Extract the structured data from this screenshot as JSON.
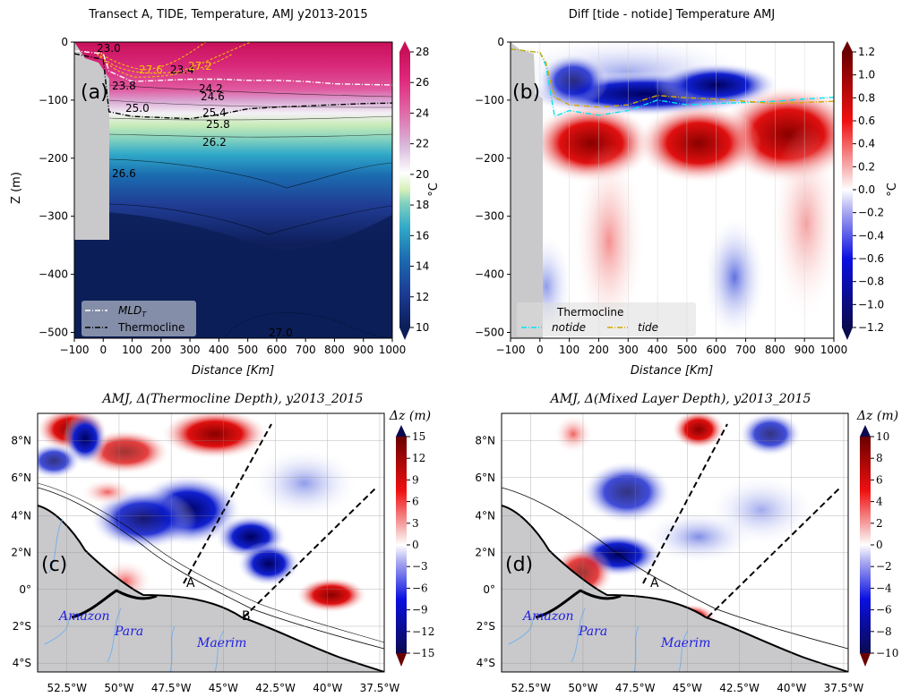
{
  "chart_data": [
    {
      "id": "a",
      "type": "heatmap",
      "title": "Transect A, TIDE, Temperature, AMJ y2013-2015",
      "panel_label": "(a)",
      "xlabel": "Distance [Km]",
      "ylabel": "Z (m)",
      "xlim": [
        -100,
        1000
      ],
      "ylim": [
        -510,
        0
      ],
      "xticks": [
        "−100",
        "0",
        "100",
        "200",
        "300",
        "400",
        "500",
        "600",
        "700",
        "800",
        "900",
        "1000"
      ],
      "xtick_values": [
        -100,
        0,
        100,
        200,
        300,
        400,
        500,
        600,
        700,
        800,
        900,
        1000
      ],
      "yticks": [
        "0",
        "−100",
        "−200",
        "−300",
        "−400",
        "−500"
      ],
      "ytick_values": [
        0,
        -100,
        -200,
        -300,
        -400,
        -500
      ],
      "colorbar": {
        "label": "°C",
        "min": 10,
        "max": 28,
        "ticks": [
          "28",
          "26",
          "24",
          "22",
          "20",
          "18",
          "16",
          "14",
          "12",
          "10"
        ],
        "tick_values": [
          28,
          26,
          24,
          22,
          20,
          18,
          16,
          14,
          12,
          10
        ]
      },
      "contour_labels": [
        "23.0",
        "27.6",
        "23.4",
        "27.2",
        "23.8",
        "24.2",
        "24.6",
        "25.0",
        "25.4",
        "25.8",
        "26.2",
        "26.6",
        "27.0"
      ],
      "legend": {
        "placement": "bottom-left",
        "entries": [
          {
            "label": "MLD_T",
            "display": "MLD",
            "sub": "T",
            "style": "white dash-dot"
          },
          {
            "label": "Thermocline",
            "style": "black dash-dot"
          }
        ]
      },
      "series": [
        {
          "name": "MLD_T",
          "x": [
            -100,
            0,
            20,
            100,
            200,
            300,
            400,
            500,
            600,
            700,
            800,
            900,
            1000
          ],
          "y": [
            -15,
            -20,
            -50,
            -68,
            -66,
            -64,
            -64,
            -66,
            -66,
            -68,
            -72,
            -73,
            -74
          ]
        },
        {
          "name": "Thermocline",
          "x": [
            -100,
            0,
            20,
            100,
            200,
            300,
            400,
            500,
            600,
            700,
            800,
            900,
            1000
          ],
          "y": [
            -20,
            -30,
            -120,
            -128,
            -130,
            -132,
            -125,
            -115,
            -112,
            -110,
            -108,
            -106,
            -105
          ]
        }
      ]
    },
    {
      "id": "b",
      "type": "heatmap",
      "title": "Diff [tide - notide] Temperature AMJ",
      "panel_label": "(b)",
      "xlabel": "Distance [Km]",
      "ylabel": "",
      "xlim": [
        -100,
        1000
      ],
      "ylim": [
        -510,
        0
      ],
      "xticks": [
        "−100",
        "0",
        "100",
        "200",
        "300",
        "400",
        "500",
        "600",
        "700",
        "800",
        "900",
        "1000"
      ],
      "xtick_values": [
        -100,
        0,
        100,
        200,
        300,
        400,
        500,
        600,
        700,
        800,
        900,
        1000
      ],
      "yticks": [
        "0",
        "−100",
        "−200",
        "−300",
        "−400",
        "−500"
      ],
      "ytick_values": [
        0,
        -100,
        -200,
        -300,
        -400,
        -500
      ],
      "colorbar": {
        "label": "°C",
        "min": -1.2,
        "max": 1.2,
        "ticks": [
          "1.2",
          "1.0",
          "0.8",
          "0.6",
          "0.4",
          "0.2",
          "0.0",
          "−0.2",
          "−0.4",
          "−0.6",
          "−0.8",
          "−1.0",
          "−1.2"
        ],
        "tick_values": [
          1.2,
          1.0,
          0.8,
          0.6,
          0.4,
          0.2,
          0.0,
          -0.2,
          -0.4,
          -0.6,
          -0.8,
          -1.0,
          -1.2
        ]
      },
      "legend": {
        "placement": "bottom-left",
        "title": "Thermocline",
        "entries": [
          {
            "label": "notide",
            "color": "#00e5ee"
          },
          {
            "label": "tide",
            "color": "#d4a800"
          }
        ]
      },
      "series": [
        {
          "name": "notide",
          "x": [
            -100,
            0,
            20,
            50,
            100,
            200,
            300,
            400,
            500,
            600,
            700,
            800,
            900,
            1000
          ],
          "y": [
            -12,
            -18,
            -40,
            -128,
            -118,
            -126,
            -118,
            -100,
            -108,
            -106,
            -104,
            -102,
            -98,
            -95
          ]
        },
        {
          "name": "tide",
          "x": [
            -100,
            0,
            20,
            50,
            100,
            200,
            300,
            400,
            500,
            600,
            700,
            800,
            900,
            1000
          ],
          "y": [
            -12,
            -18,
            -35,
            -95,
            -108,
            -112,
            -108,
            -92,
            -96,
            -98,
            -102,
            -106,
            -104,
            -102
          ]
        }
      ]
    },
    {
      "id": "c",
      "type": "heatmap",
      "title": "AMJ, Δ(Thermocline Depth), y2013_2015",
      "panel_label": "(c)",
      "xticks": [
        "52.5°W",
        "50°W",
        "47.5°W",
        "45°W",
        "42.5°W",
        "40°W",
        "37.5°W"
      ],
      "yticks": [
        "8°N",
        "6°N",
        "4°N",
        "2°N",
        "0°",
        "2°S",
        "4°S"
      ],
      "colorbar": {
        "label": "Δz (m)",
        "min": -15,
        "max": 15,
        "ticks": [
          "15",
          "12",
          "9",
          "6",
          "3",
          "0",
          "−3",
          "−6",
          "−9",
          "−12",
          "−15"
        ],
        "tick_values": [
          15,
          12,
          9,
          6,
          3,
          0,
          -3,
          -6,
          -9,
          -12,
          -15
        ]
      },
      "annotations": [
        "A",
        "B",
        "Amazon",
        "Para",
        "Maerim"
      ]
    },
    {
      "id": "d",
      "type": "heatmap",
      "title": "AMJ, Δ(Mixed Layer Depth), y2013_2015",
      "panel_label": "(d)",
      "xticks": [
        "52.5°W",
        "50°W",
        "47.5°W",
        "45°W",
        "42.5°W",
        "40°W",
        "37.5°W"
      ],
      "yticks": [
        "8°N",
        "6°N",
        "4°N",
        "2°N",
        "0°",
        "2°S",
        "4°S"
      ],
      "colorbar": {
        "label": "Δz (m)",
        "min": -10,
        "max": 10,
        "ticks": [
          "10",
          "8",
          "6",
          "4",
          "2",
          "0",
          "−2",
          "−4",
          "−6",
          "−8",
          "−10"
        ],
        "tick_values": [
          10,
          8,
          6,
          4,
          2,
          0,
          -2,
          -4,
          -6,
          -8,
          -10
        ]
      },
      "annotations": [
        "A",
        "Amazon",
        "Para",
        "Maerim"
      ]
    }
  ]
}
